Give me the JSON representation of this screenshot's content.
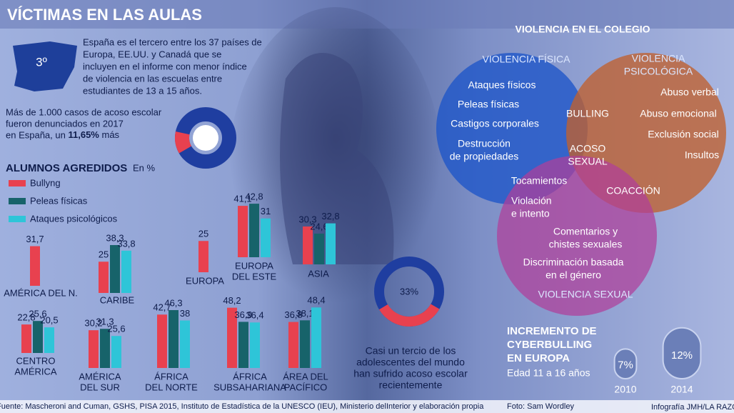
{
  "header": {
    "title": "VÍCTIMAS EN LAS AULAS"
  },
  "spain": {
    "rank": "3º",
    "lines": [
      "España es el tercero entre los 37 países de",
      "Europa, EE.UU. y Canadá que se",
      "incluyen en el informe con menor índice",
      "de violencia en las escuelas entre",
      "estudiantes de 13 a 15 años."
    ]
  },
  "cases": {
    "lines": [
      "Más de 1.000 casos de acoso escolar",
      "fueron denunciados en 2017"
    ],
    "lead": "en España, un",
    "highlight": "11,65%",
    "tail": "más",
    "value": 11.65
  },
  "chart_data": {
    "type": "bar",
    "title": "ALUMNOS AGREDIDOS",
    "unit": "En %",
    "categories": [
      [
        "AMÉRICA DEL N."
      ],
      [
        "CARIBE"
      ],
      [
        "EUROPA"
      ],
      [
        "EUROPA",
        "DEL ESTE"
      ],
      [
        "ASIA"
      ],
      [
        "CENTRO",
        "AMÉRICA"
      ],
      [
        "AMÉRICA",
        "DEL SUR"
      ],
      [
        "ÁFRICA",
        "DEL NORTE"
      ],
      [
        "ÁFRICA",
        "SUBSAHARIANA"
      ],
      [
        "ÁREA DEL",
        "PACÍFICO"
      ]
    ],
    "series": [
      {
        "name": "Bullyng",
        "color": "#e8414f",
        "values": [
          31.7,
          25,
          25,
          41.1,
          30.3,
          22.8,
          30.2,
          42.7,
          48.2,
          36.8
        ],
        "value_labels": [
          "31,7",
          "25",
          "25",
          "41,1",
          "30,3",
          "22,8",
          "30,2",
          "42,7",
          "48,2",
          "36,8"
        ]
      },
      {
        "name": "Peleas físicas",
        "color": "#17636a",
        "values": [
          null,
          38.3,
          null,
          42.8,
          24.6,
          25.6,
          31.3,
          46.3,
          36.9,
          38.1
        ],
        "value_labels": [
          null,
          "38,3",
          null,
          "42,8",
          "24,6",
          "25,6",
          "31,3",
          "46,3",
          "36,9",
          "38,1"
        ]
      },
      {
        "name": "Ataques psicológicos",
        "color": "#2ec5d8",
        "values": [
          null,
          33.8,
          null,
          31,
          32.8,
          20.5,
          25.6,
          38,
          36.4,
          48.4
        ],
        "value_labels": [
          null,
          "33,8",
          null,
          "31",
          "32,8",
          "20,5",
          "25,6",
          "38",
          "36,4",
          "48,4"
        ]
      }
    ]
  },
  "survey": {
    "value": 33,
    "label": "33%",
    "lines": [
      "Casi un tercio de los",
      "adolescentes del mundo",
      "han sufrido acoso escolar",
      "recientemente"
    ]
  },
  "venn": {
    "title": "VIOLENCIA EN EL COLEGIO",
    "items": [
      {
        "lines": [
          "VIOLENCIA FÍSICA"
        ]
      },
      {
        "lines": [
          "VIOLENCIA",
          "PSICOLÓGICA"
        ]
      },
      {
        "lines": [
          "Ataques físicos"
        ]
      },
      {
        "lines": [
          "Peleas físicas"
        ]
      },
      {
        "lines": [
          "Castigos corporales"
        ]
      },
      {
        "lines": [
          "Destrucción",
          "de propiedades"
        ]
      },
      {
        "lines": [
          "BULLING"
        ]
      },
      {
        "lines": [
          "ACOSO",
          "SEXUAL"
        ]
      },
      {
        "lines": [
          "Abuso verbal"
        ]
      },
      {
        "lines": [
          "Abuso emocional"
        ]
      },
      {
        "lines": [
          "Exclusión social"
        ]
      },
      {
        "lines": [
          "Insultos"
        ]
      },
      {
        "lines": [
          "Tocamientos"
        ]
      },
      {
        "lines": [
          "Violación",
          "e intento"
        ]
      },
      {
        "lines": [
          "COACCIÓN"
        ]
      },
      {
        "lines": [
          "Comentarios y",
          "chistes sexuales"
        ]
      },
      {
        "lines": [
          "Discriminación basada",
          "en el género"
        ]
      },
      {
        "lines": [
          "VIOLENCIA SEXUAL"
        ]
      }
    ]
  },
  "cyber": {
    "title": [
      "INCREMENTO DE",
      "CYBERBULLING",
      "EN EUROPA"
    ],
    "subtitle": "Edad 11 a 16 años",
    "points": [
      {
        "year": "2010",
        "value": 7,
        "label": "7%"
      },
      {
        "year": "2014",
        "value": 12,
        "label": "12%"
      }
    ]
  },
  "footer": {
    "source": "Fuente: Mascheroni and Cuman, GSHS, PISA 2015, Instituto de Estadística de la UNESCO (IEU), Ministerio delInterior y elaboración propia",
    "photo": "Foto: Sam Wordley",
    "credit": "Infografía JMH/LA RAZÓN"
  }
}
